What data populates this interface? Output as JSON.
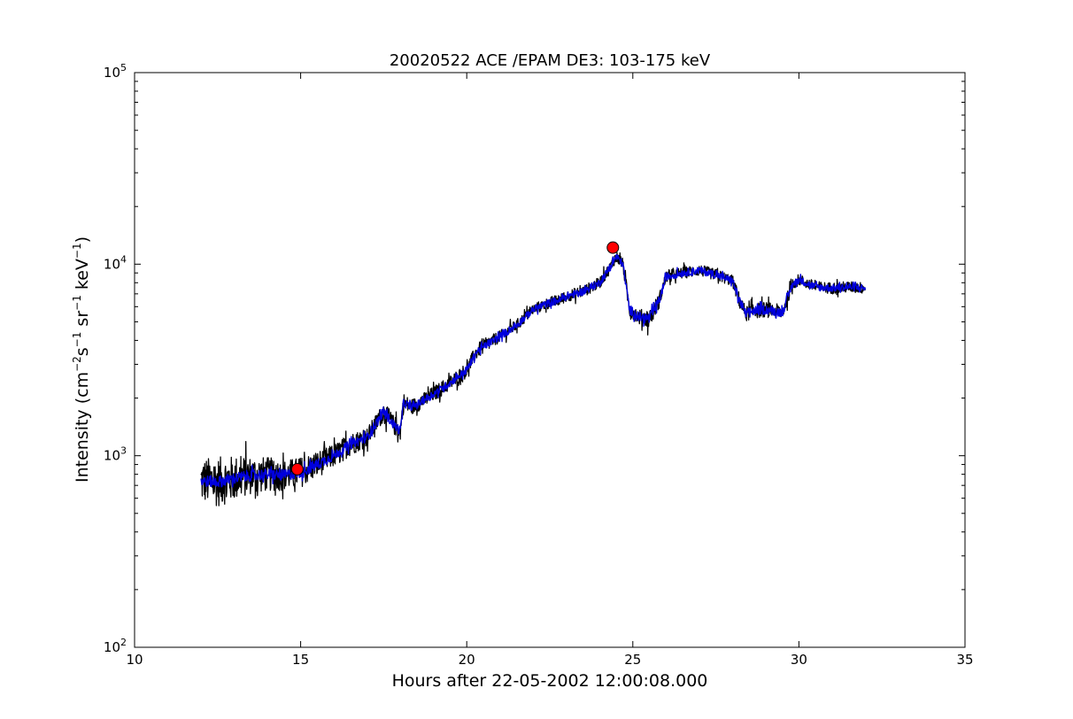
{
  "chart_data": {
    "type": "line",
    "title": "20020522 ACE /EPAM DE3: 103-175 keV",
    "xlabel": "Hours after 22-05-2002 12:00:08.000",
    "ylabel": {
      "prefix": "Intensity (cm",
      "sup1": "−2",
      "mid1": "s",
      "sup2": "−1",
      "mid2": " sr",
      "sup3": "−1",
      "mid3": " keV",
      "sup4": "−1",
      "suffix": ")"
    },
    "xlim": [
      10,
      35
    ],
    "ylim": [
      100,
      100000
    ],
    "yscale": "log",
    "grid": false,
    "x_ticks": [
      10,
      15,
      20,
      25,
      30,
      35
    ],
    "x_tick_labels": [
      "10",
      "15",
      "20",
      "25",
      "30",
      "35"
    ],
    "y_ticks": [
      100,
      1000,
      10000,
      100000
    ],
    "y_tick_labels": [
      {
        "base": "10",
        "exp": "2"
      },
      {
        "base": "10",
        "exp": "3"
      },
      {
        "base": "10",
        "exp": "4"
      },
      {
        "base": "10",
        "exp": "5"
      }
    ],
    "series": [
      {
        "kind": "raw",
        "color": "#000000",
        "x": [
          12.0,
          12.5,
          13.0,
          13.5,
          14.0,
          14.5,
          15.0,
          15.5,
          16.0,
          16.5,
          17.0,
          17.3,
          17.5,
          17.8,
          18.0,
          18.1,
          18.3,
          18.5,
          19.0,
          19.5,
          20.0,
          20.3,
          20.5,
          21.0,
          21.5,
          22.0,
          22.5,
          22.8,
          23.0,
          23.5,
          24.0,
          24.3,
          24.5,
          24.7,
          24.9,
          25.2,
          25.5,
          25.8,
          26.0,
          26.5,
          27.0,
          27.5,
          28.0,
          28.2,
          28.4,
          28.6,
          29.0,
          29.5,
          29.8,
          30.0,
          30.5,
          31.0,
          31.5,
          32.0
        ],
        "y": [
          740,
          730,
          760,
          790,
          800,
          790,
          820,
          900,
          1000,
          1150,
          1250,
          1500,
          1700,
          1450,
          1350,
          1900,
          1800,
          1850,
          2100,
          2400,
          2800,
          3500,
          3700,
          4200,
          4800,
          5800,
          6300,
          6500,
          6800,
          7200,
          8000,
          9500,
          11000,
          10000,
          5800,
          5300,
          5200,
          6500,
          8600,
          9000,
          9300,
          8800,
          8200,
          6500,
          5500,
          5700,
          5800,
          5600,
          7800,
          8300,
          7600,
          7500,
          7600,
          7500
        ],
        "noise": [
          0.12,
          0.13,
          0.12,
          0.1,
          0.09,
          0.08,
          0.08,
          0.07,
          0.06,
          0.06,
          0.05,
          0.05,
          0.05,
          0.05,
          0.05,
          0.05,
          0.04,
          0.04,
          0.04,
          0.04,
          0.04,
          0.04,
          0.04,
          0.03,
          0.03,
          0.03,
          0.03,
          0.03,
          0.03,
          0.03,
          0.03,
          0.03,
          0.03,
          0.03,
          0.04,
          0.04,
          0.05,
          0.04,
          0.03,
          0.03,
          0.03,
          0.03,
          0.03,
          0.04,
          0.04,
          0.04,
          0.04,
          0.04,
          0.03,
          0.03,
          0.03,
          0.03,
          0.03,
          0.03
        ]
      },
      {
        "kind": "smoothed",
        "color": "#0000dd",
        "x": [
          12.0,
          12.5,
          13.0,
          13.5,
          14.0,
          14.5,
          15.0,
          15.5,
          16.0,
          16.5,
          17.0,
          17.3,
          17.5,
          17.8,
          18.0,
          18.1,
          18.3,
          18.5,
          19.0,
          19.5,
          20.0,
          20.3,
          20.5,
          21.0,
          21.5,
          22.0,
          22.5,
          22.8,
          23.0,
          23.5,
          24.0,
          24.3,
          24.5,
          24.7,
          24.9,
          25.2,
          25.5,
          25.8,
          26.0,
          26.5,
          27.0,
          27.5,
          28.0,
          28.2,
          28.4,
          28.6,
          29.0,
          29.5,
          29.8,
          30.0,
          30.5,
          31.0,
          31.5,
          32.0
        ],
        "y": [
          740,
          730,
          760,
          790,
          800,
          790,
          820,
          900,
          1000,
          1150,
          1250,
          1500,
          1700,
          1450,
          1350,
          1900,
          1800,
          1850,
          2100,
          2400,
          2800,
          3500,
          3700,
          4200,
          4800,
          5800,
          6300,
          6500,
          6800,
          7200,
          8000,
          9500,
          11000,
          10000,
          5800,
          5300,
          5200,
          6500,
          8600,
          9000,
          9300,
          8800,
          8200,
          6500,
          5500,
          5700,
          5800,
          5600,
          7800,
          8300,
          7600,
          7500,
          7600,
          7500
        ],
        "noise": [
          0.03,
          0.03,
          0.03,
          0.03,
          0.03,
          0.03,
          0.03,
          0.03,
          0.025,
          0.025,
          0.025,
          0.025,
          0.025,
          0.025,
          0.025,
          0.025,
          0.02,
          0.02,
          0.02,
          0.02,
          0.02,
          0.02,
          0.02,
          0.02,
          0.02,
          0.02,
          0.02,
          0.02,
          0.02,
          0.02,
          0.02,
          0.02,
          0.02,
          0.02,
          0.025,
          0.025,
          0.03,
          0.025,
          0.02,
          0.02,
          0.02,
          0.02,
          0.02,
          0.025,
          0.025,
          0.025,
          0.025,
          0.025,
          0.02,
          0.02,
          0.02,
          0.02,
          0.02,
          0.02
        ]
      }
    ],
    "markers": [
      {
        "x": 14.9,
        "y": 850,
        "color": "#ff0000"
      },
      {
        "x": 24.4,
        "y": 12200,
        "color": "#ff0000"
      }
    ]
  }
}
